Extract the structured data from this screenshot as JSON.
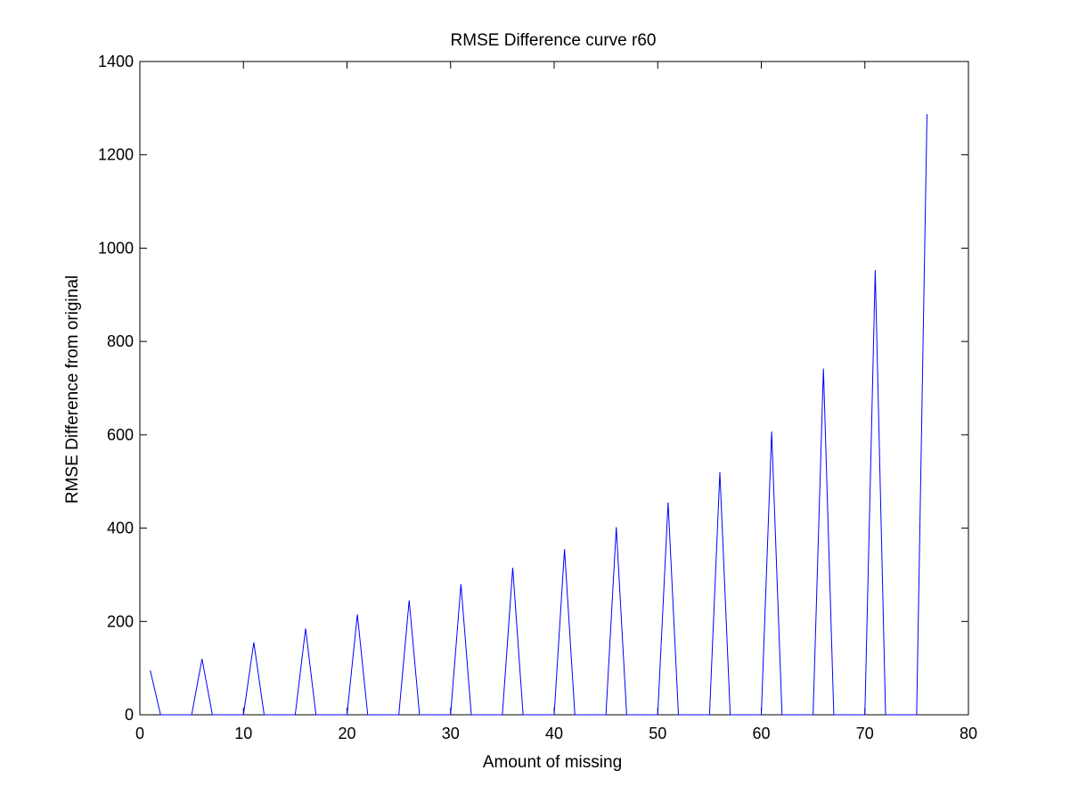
{
  "chart_data": {
    "type": "line",
    "title": "RMSE Difference curve r60",
    "xlabel": "Amount of missing",
    "ylabel": "RMSE Difference from original",
    "xlim": [
      0,
      80
    ],
    "ylim": [
      0,
      1400
    ],
    "xticks": [
      0,
      10,
      20,
      30,
      40,
      50,
      60,
      70,
      80
    ],
    "yticks": [
      0,
      200,
      400,
      600,
      800,
      1000,
      1200,
      1400
    ],
    "xtick_labels": [
      "0",
      "10",
      "20",
      "30",
      "40",
      "50",
      "60",
      "70",
      "80"
    ],
    "ytick_labels": [
      "0",
      "200",
      "400",
      "600",
      "800",
      "1000",
      "1200",
      "1400"
    ],
    "grid": false,
    "series": [
      {
        "color": "#0000ff",
        "x": [
          1,
          2,
          3,
          4,
          5,
          6,
          7,
          8,
          9,
          10,
          11,
          12,
          13,
          14,
          15,
          16,
          17,
          18,
          19,
          20,
          21,
          22,
          23,
          24,
          25,
          26,
          27,
          28,
          29,
          30,
          31,
          32,
          33,
          34,
          35,
          36,
          37,
          38,
          39,
          40,
          41,
          42,
          43,
          44,
          45,
          46,
          47,
          48,
          49,
          50,
          51,
          52,
          53,
          54,
          55,
          56,
          57,
          58,
          59,
          60,
          61,
          62,
          63,
          64,
          65,
          66,
          67,
          68,
          69,
          70,
          71,
          72,
          73,
          74,
          75,
          76
        ],
        "y": [
          95,
          0,
          0,
          0,
          0,
          120,
          0,
          0,
          0,
          0,
          155,
          0,
          0,
          0,
          0,
          185,
          0,
          0,
          0,
          0,
          215,
          0,
          0,
          0,
          0,
          245,
          0,
          0,
          0,
          0,
          280,
          0,
          0,
          0,
          0,
          315,
          0,
          0,
          0,
          0,
          355,
          0,
          0,
          0,
          0,
          402,
          0,
          0,
          0,
          0,
          455,
          0,
          0,
          0,
          0,
          520,
          0,
          0,
          0,
          0,
          607,
          0,
          0,
          0,
          0,
          742,
          0,
          0,
          0,
          0,
          953,
          0,
          0,
          0,
          0,
          1287
        ]
      }
    ]
  }
}
